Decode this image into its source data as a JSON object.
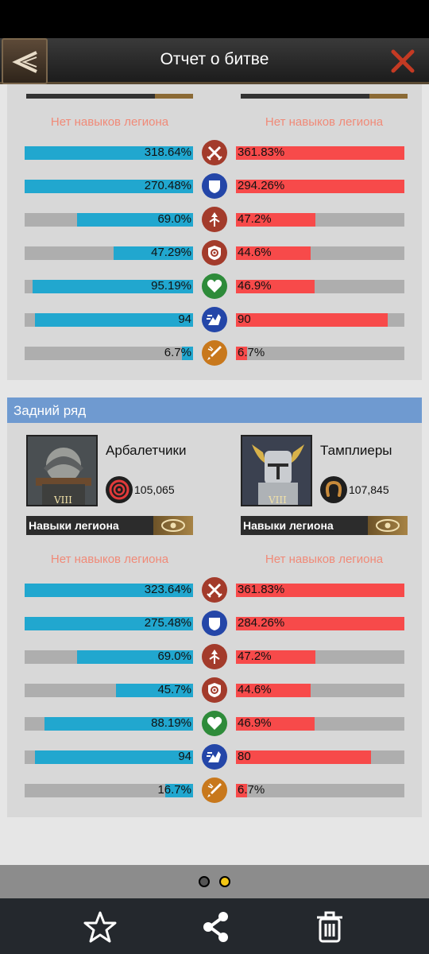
{
  "header": {
    "title": "Отчет о битве"
  },
  "no_skill_text": "Нет навыков легиона",
  "front_rows": [
    {
      "icon": "attack-icon",
      "color": "#a33b2b",
      "l": "318.64%",
      "lf": 1.0,
      "r": "361.83%",
      "rf": 1.0
    },
    {
      "icon": "defense-icon",
      "color": "#2446a8",
      "l": "270.48%",
      "lf": 1.0,
      "r": "294.26%",
      "rf": 1.0
    },
    {
      "icon": "attack-speed-icon",
      "color": "#a33b2b",
      "l": "69.0%",
      "lf": 0.69,
      "r": "47.2%",
      "rf": 0.47
    },
    {
      "icon": "crit-icon",
      "color": "#a33b2b",
      "l": "47.29%",
      "lf": 0.47,
      "r": "44.6%",
      "rf": 0.445
    },
    {
      "icon": "health-icon",
      "color": "#2e8b3a",
      "l": "95.19%",
      "lf": 0.952,
      "r": "46.9%",
      "rf": 0.469
    },
    {
      "icon": "speed-icon",
      "color": "#2446a8",
      "l": "94",
      "lf": 0.94,
      "r": "90",
      "rf": 0.9
    },
    {
      "icon": "skill-damage-icon",
      "color": "#c8781c",
      "l": "6.7%",
      "lf": 0.067,
      "r": "6.7%",
      "rf": 0.067
    }
  ],
  "back": {
    "section_title": "Задний ряд",
    "left_unit": {
      "name": "Арбалетчики",
      "power": "105,065",
      "rank": "VIII"
    },
    "right_unit": {
      "name": "Тамплиеры",
      "power": "107,845",
      "rank": "VIII"
    },
    "skills_label": "Навыки легиона",
    "rows": [
      {
        "icon": "attack-icon",
        "color": "#a33b2b",
        "l": "323.64%",
        "lf": 1.0,
        "r": "361.83%",
        "rf": 1.0
      },
      {
        "icon": "defense-icon",
        "color": "#2446a8",
        "l": "275.48%",
        "lf": 1.0,
        "r": "284.26%",
        "rf": 1.0
      },
      {
        "icon": "attack-speed-icon",
        "color": "#a33b2b",
        "l": "69.0%",
        "lf": 0.69,
        "r": "47.2%",
        "rf": 0.47
      },
      {
        "icon": "crit-icon",
        "color": "#a33b2b",
        "l": "45.7%",
        "lf": 0.457,
        "r": "44.6%",
        "rf": 0.445
      },
      {
        "icon": "health-icon",
        "color": "#2e8b3a",
        "l": "88.19%",
        "lf": 0.882,
        "r": "46.9%",
        "rf": 0.469
      },
      {
        "icon": "speed-icon",
        "color": "#2446a8",
        "l": "94",
        "lf": 0.94,
        "r": "80",
        "rf": 0.8
      },
      {
        "icon": "skill-damage-icon",
        "color": "#c8781c",
        "l": "16.7%",
        "lf": 0.167,
        "r": "6.7%",
        "rf": 0.067
      }
    ]
  },
  "pager": {
    "pages": 2,
    "active": 1
  },
  "toolbar": {
    "favorite": "star-icon",
    "share": "share-icon",
    "delete": "trash-icon"
  },
  "colors": {
    "blue": "#21a7cf",
    "red": "#f74a4a",
    "section": "#6f9ad0"
  }
}
